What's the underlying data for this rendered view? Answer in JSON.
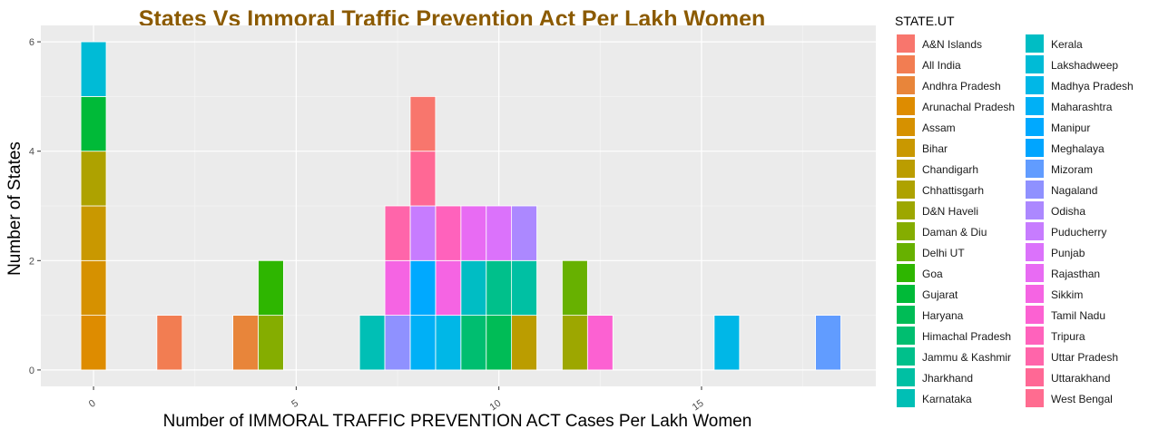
{
  "chart_data": {
    "type": "bar",
    "subtype": "stacked-histogram",
    "title": "States Vs Immoral Traffic Prevention Act Per Lakh Women",
    "title_color": "#8B5A00",
    "xlabel": "Number of IMMORAL TRAFFIC PREVENTION ACT Cases Per Lakh Women",
    "ylabel": "Number of States",
    "xlim": [
      -1.3,
      19.3
    ],
    "ylim": [
      -0.3,
      6.3
    ],
    "x_ticks": [
      0,
      5,
      10,
      15
    ],
    "y_ticks": [
      0,
      2,
      4,
      6
    ],
    "bin_width": 0.625,
    "grid": true,
    "legend_title": "STATE.UT",
    "legend_position": "right",
    "series": [
      {
        "name": "A&N Islands",
        "color": "#F8766D",
        "bins": []
      },
      {
        "name": "All India",
        "color": "#F27D52",
        "bins": [
          {
            "x": 1.875,
            "count": 1
          }
        ]
      },
      {
        "name": "Andhra Pradesh",
        "color": "#E8853A",
        "bins": [
          {
            "x": 3.75,
            "count": 1
          }
        ]
      },
      {
        "name": "Arunachal Pradesh",
        "color": "#DE8C00",
        "bins": [
          {
            "x": 0,
            "count": 1
          }
        ]
      },
      {
        "name": "Assam",
        "color": "#D69100",
        "bins": [
          {
            "x": 0,
            "count": 1
          }
        ]
      },
      {
        "name": "Bihar",
        "color": "#C99800",
        "bins": [
          {
            "x": 0,
            "count": 1
          }
        ]
      },
      {
        "name": "Chandigarh",
        "color": "#BB9D00",
        "bins": [
          {
            "x": 10.625,
            "count": 1
          }
        ]
      },
      {
        "name": "Chhattisgarh",
        "color": "#AEA200",
        "bins": [
          {
            "x": 0,
            "count": 1
          }
        ]
      },
      {
        "name": "D&N Haveli",
        "color": "#9DA700",
        "bins": [
          {
            "x": 11.875,
            "count": 1
          }
        ]
      },
      {
        "name": "Daman & Diu",
        "color": "#85AD00",
        "bins": [
          {
            "x": 4.375,
            "count": 1
          }
        ]
      },
      {
        "name": "Delhi UT",
        "color": "#67B100",
        "bins": [
          {
            "x": 11.875,
            "count": 1
          }
        ]
      },
      {
        "name": "Goa",
        "color": "#2EB600",
        "bins": [
          {
            "x": 4.375,
            "count": 1
          }
        ]
      },
      {
        "name": "Gujarat",
        "color": "#00BA38",
        "bins": [
          {
            "x": 0,
            "count": 1
          }
        ]
      },
      {
        "name": "Haryana",
        "color": "#00BC56",
        "bins": [
          {
            "x": 10,
            "count": 1
          }
        ]
      },
      {
        "name": "Himachal Pradesh",
        "color": "#00BE70",
        "bins": [
          {
            "x": 9.375,
            "count": 1
          }
        ]
      },
      {
        "name": "Jammu & Kashmir",
        "color": "#00C08B",
        "bins": [
          {
            "x": 10,
            "count": 1
          }
        ]
      },
      {
        "name": "Jharkhand",
        "color": "#00C0A3",
        "bins": [
          {
            "x": 10.625,
            "count": 1
          }
        ]
      },
      {
        "name": "Karnataka",
        "color": "#00BFB5",
        "bins": [
          {
            "x": 6.875,
            "count": 1
          }
        ]
      },
      {
        "name": "Kerala",
        "color": "#00BDC4",
        "bins": [
          {
            "x": 9.375,
            "count": 1
          }
        ]
      },
      {
        "name": "Lakshadweep",
        "color": "#00BBD6",
        "bins": [
          {
            "x": 0,
            "count": 1
          }
        ]
      },
      {
        "name": "Madhya Pradesh",
        "color": "#00B7E7",
        "bins": [
          {
            "x": 8.75,
            "count": 1
          },
          {
            "x": 15.625,
            "count": 1
          }
        ]
      },
      {
        "name": "Maharashtra",
        "color": "#00B0F6",
        "bins": [
          {
            "x": 8.125,
            "count": 1
          }
        ]
      },
      {
        "name": "Manipur",
        "color": "#00A9FF",
        "bins": [
          {
            "x": 8.125,
            "count": 1
          }
        ]
      },
      {
        "name": "Meghalaya",
        "color": "#00A5FF",
        "bins": []
      },
      {
        "name": "Mizoram",
        "color": "#619CFF",
        "bins": [
          {
            "x": 18.125,
            "count": 1
          }
        ]
      },
      {
        "name": "Nagaland",
        "color": "#8F91FF",
        "bins": [
          {
            "x": 7.5,
            "count": 1
          }
        ]
      },
      {
        "name": "Odisha",
        "color": "#AC88FF",
        "bins": [
          {
            "x": 10.625,
            "count": 1
          }
        ]
      },
      {
        "name": "Puducherry",
        "color": "#C77CFF",
        "bins": [
          {
            "x": 8.125,
            "count": 1
          }
        ]
      },
      {
        "name": "Punjab",
        "color": "#DB72FB",
        "bins": [
          {
            "x": 10,
            "count": 1
          }
        ]
      },
      {
        "name": "Rajasthan",
        "color": "#E86BF3",
        "bins": [
          {
            "x": 9.375,
            "count": 1
          }
        ]
      },
      {
        "name": "Sikkim",
        "color": "#F564E3",
        "bins": [
          {
            "x": 7.5,
            "count": 1
          },
          {
            "x": 8.75,
            "count": 1
          }
        ]
      },
      {
        "name": "Tamil Nadu",
        "color": "#FC61D2",
        "bins": [
          {
            "x": 12.5,
            "count": 1
          }
        ]
      },
      {
        "name": "Tripura",
        "color": "#FF62BC",
        "bins": [
          {
            "x": 8.75,
            "count": 1
          }
        ]
      },
      {
        "name": "Uttar Pradesh",
        "color": "#FF65AA",
        "bins": [
          {
            "x": 7.5,
            "count": 1
          }
        ]
      },
      {
        "name": "Uttarakhand",
        "color": "#FF6895",
        "bins": [
          {
            "x": 8.125,
            "count": 1
          }
        ]
      },
      {
        "name": "West Bengal",
        "color": "#FF6C90",
        "bins": []
      }
    ],
    "overflow_bars": [
      {
        "x": 8.125,
        "name": "A&N Islands",
        "count": 1,
        "stack_on": 4
      }
    ]
  }
}
